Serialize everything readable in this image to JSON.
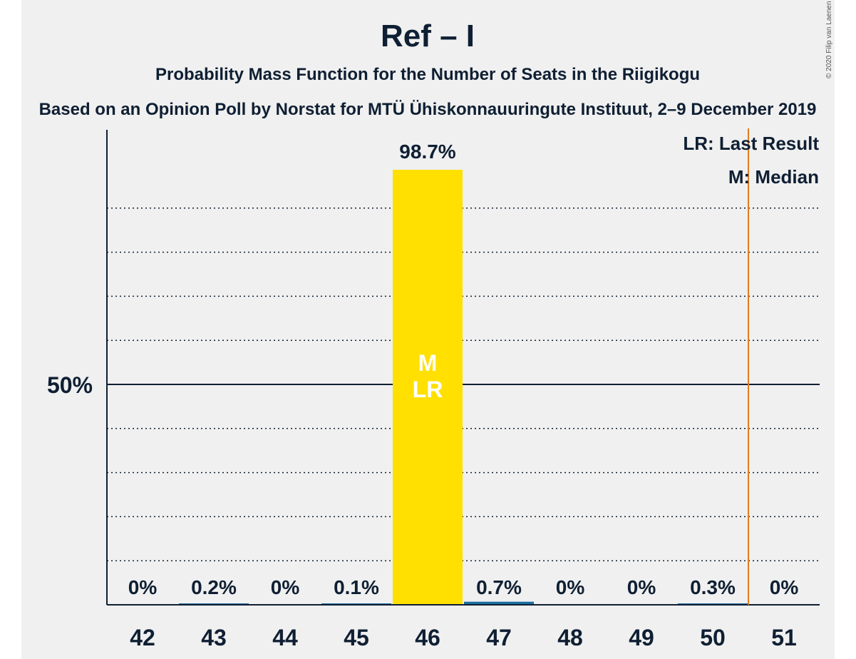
{
  "chart_data": {
    "type": "bar",
    "title": "Ref – I",
    "subtitle": "Probability Mass Function for the Number of Seats in the Riigikogu",
    "caption": "Based on an Opinion Poll by Norstat for MTÜ Ühiskonnauuringute Instituut, 2–9 December 2019",
    "copyright": "© 2020 Filip van Laenen",
    "categories": [
      "42",
      "43",
      "44",
      "45",
      "46",
      "47",
      "48",
      "49",
      "50",
      "51"
    ],
    "values": [
      0,
      0.2,
      0,
      0.1,
      98.7,
      0.7,
      0,
      0,
      0.3,
      0
    ],
    "value_labels": [
      "0%",
      "0.2%",
      "0%",
      "0.1%",
      "98.7%",
      "0.7%",
      "0%",
      "0%",
      "0.3%",
      "0%"
    ],
    "ylim": [
      0,
      100
    ],
    "y_tick_label": "50%",
    "y_tick_value": 50,
    "grid": true,
    "median_seats": "46",
    "last_result_seats": "46",
    "bar_markers": [
      "M",
      "LR"
    ],
    "majority_line_after": "50",
    "legend": [
      "LR: Last Result",
      "M: Median"
    ],
    "colors": {
      "main_bar": "#ffe000",
      "other_bar": "#1a6ea0",
      "majority_line": "#e07b20",
      "marker_text": "#ffffff",
      "text": "#0f1f33",
      "panel": "#f0f0f0"
    }
  }
}
